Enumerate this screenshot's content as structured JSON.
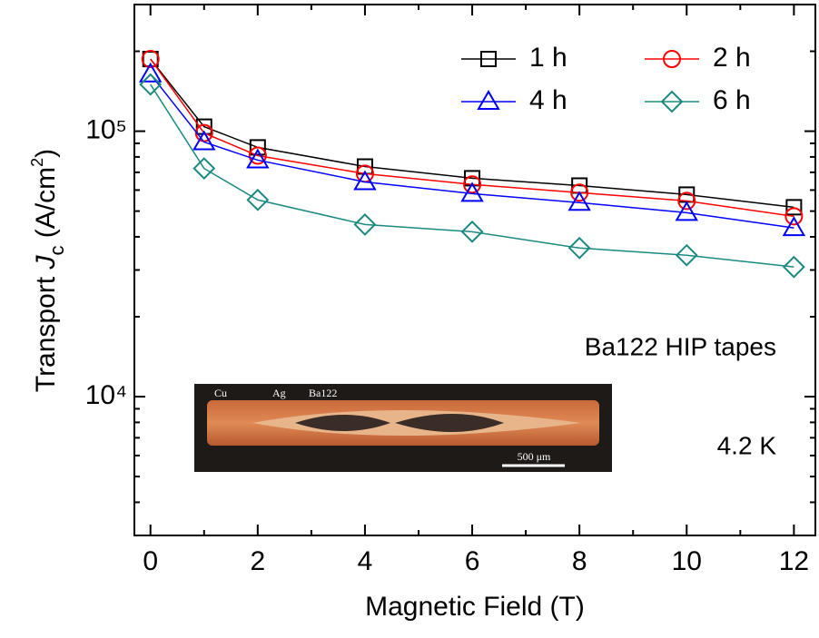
{
  "chart_data": {
    "type": "line",
    "x_label": "Magnetic Field (T)",
    "y_label": [
      "Transport ",
      "J",
      "c",
      " (A/cm",
      "2",
      ")"
    ],
    "x": [
      0,
      1,
      2,
      4,
      6,
      8,
      10,
      12
    ],
    "series": [
      {
        "name": "1 h",
        "color": "#000000",
        "marker": "square",
        "values": [
          187000,
          104000,
          86900,
          73600,
          66500,
          62400,
          57700,
          51700
        ]
      },
      {
        "name": "2 h",
        "color": "#ff0000",
        "marker": "circle",
        "values": [
          187000,
          98400,
          80900,
          69200,
          63000,
          58700,
          54600,
          47800
        ]
      },
      {
        "name": "4 h",
        "color": "#0000ff",
        "marker": "triangle",
        "values": [
          164000,
          91000,
          77800,
          64400,
          58200,
          53800,
          49300,
          43200
        ]
      },
      {
        "name": "6 h",
        "color": "#1a8a80",
        "marker": "diamond",
        "values": [
          150000,
          72400,
          55100,
          44500,
          41800,
          36300,
          34100,
          30800
        ]
      }
    ],
    "xlim": [
      -0.3,
      12.4
    ],
    "xticks": [
      0,
      2,
      4,
      6,
      8,
      10,
      12
    ],
    "xminorticks": [
      1,
      3,
      5,
      7,
      9,
      11
    ],
    "ylim": [
      3000,
      300000
    ],
    "ylog": true,
    "yticks": [
      {
        "value": 10000,
        "label": "10⁴"
      },
      {
        "value": 100000,
        "label": "10⁵"
      }
    ],
    "yminorticks": [
      3000,
      4000,
      5000,
      6000,
      7000,
      8000,
      9000,
      20000,
      30000,
      40000,
      50000,
      60000,
      70000,
      80000,
      90000,
      200000,
      300000
    ],
    "legend_position": "upper right",
    "annotations": [
      "Ba122 HIP tapes",
      "4.2 K"
    ],
    "inset_labels": [
      "Cu",
      "Ag",
      "Ba122",
      "500 μm"
    ]
  }
}
